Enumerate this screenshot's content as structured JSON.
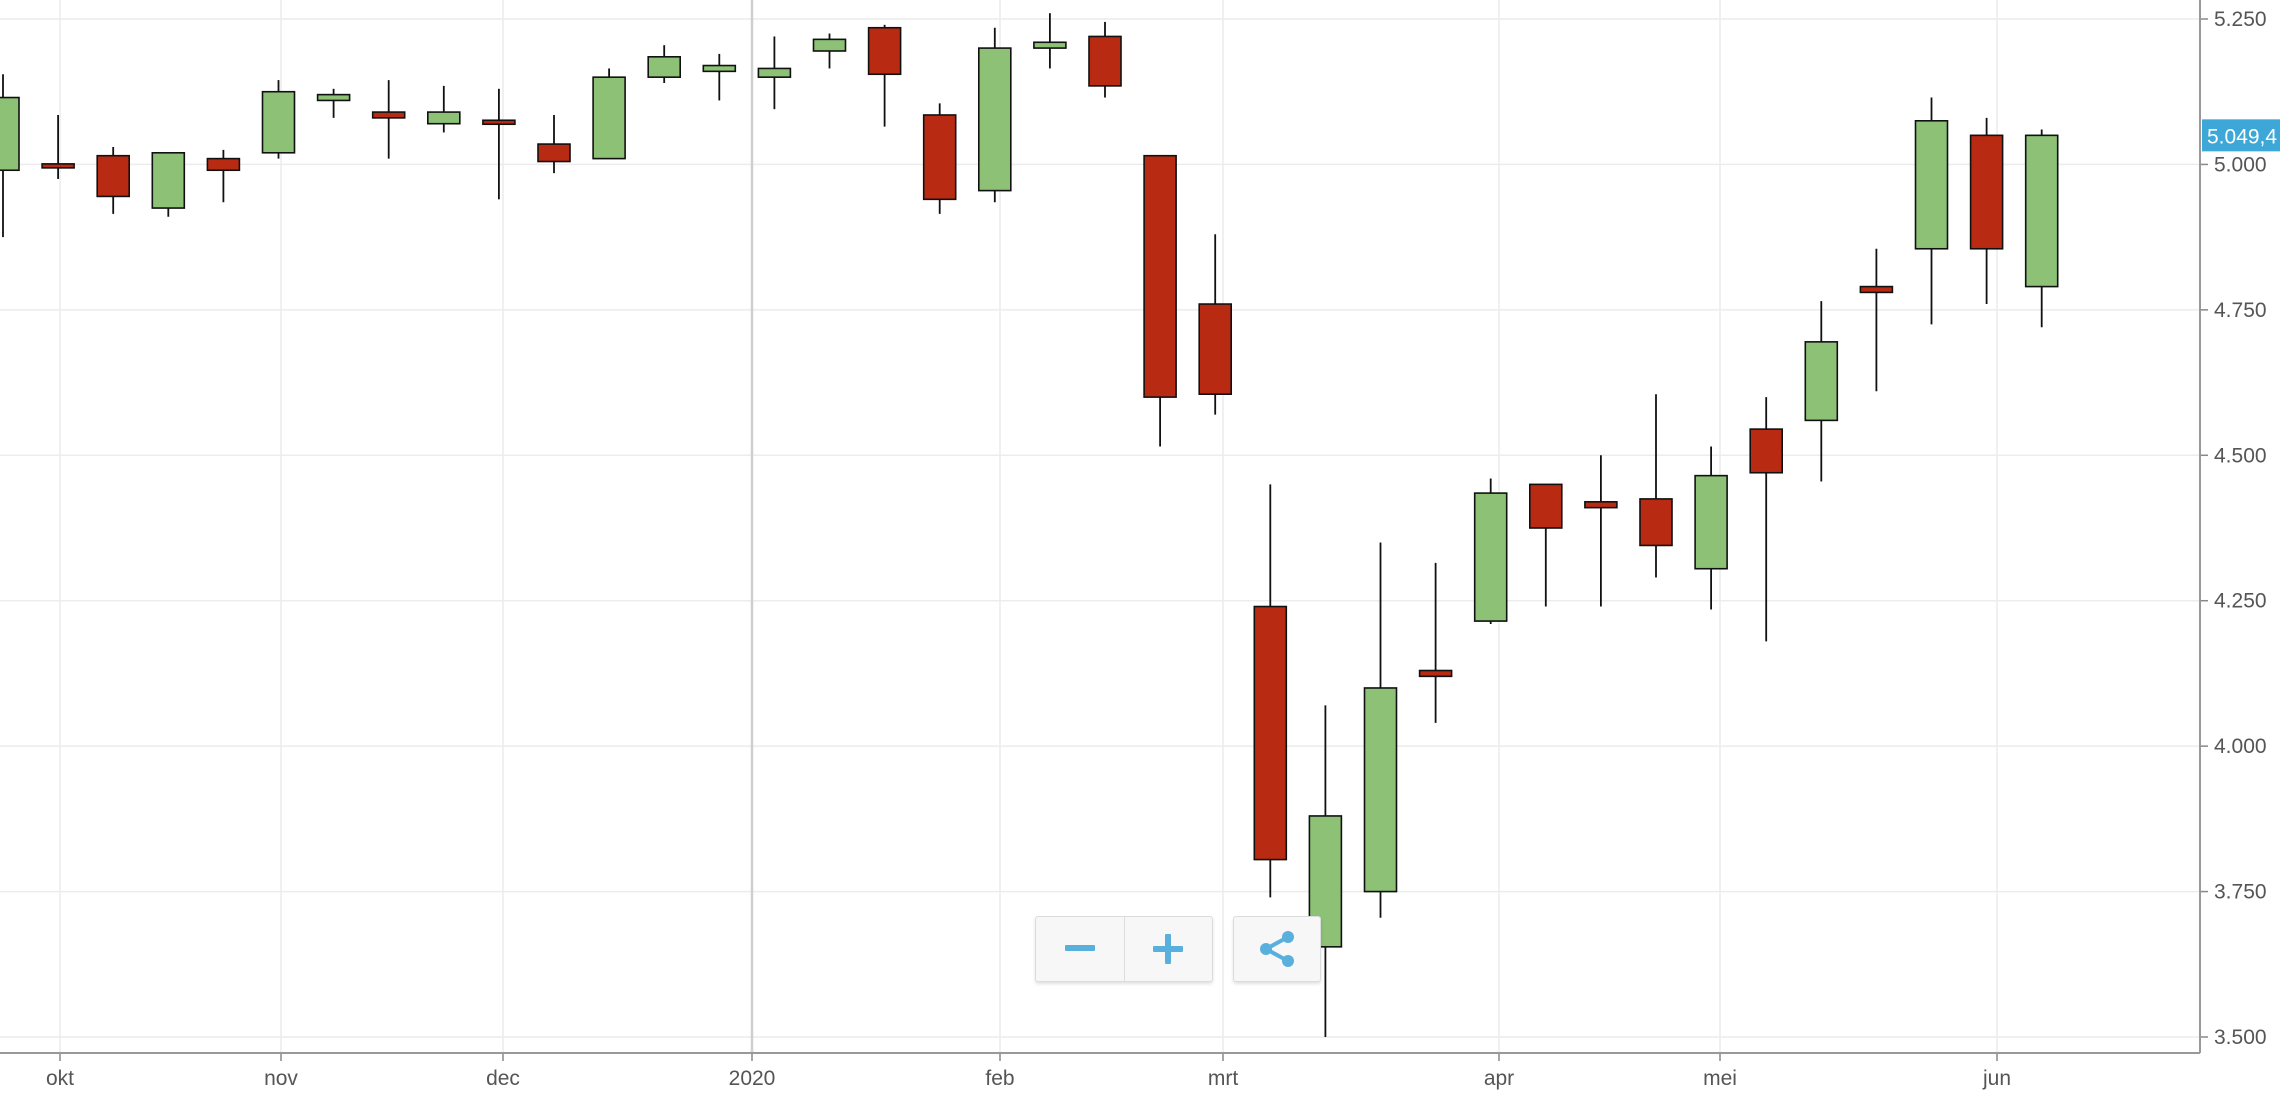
{
  "chart_data": {
    "type": "candlestick",
    "period": "weekly",
    "y_axis": {
      "position": "right",
      "ylim": [
        3500,
        5250
      ],
      "ticks": [
        3500,
        3750,
        4000,
        4250,
        4500,
        4750,
        5000,
        5250
      ],
      "tick_labels": [
        "3.500",
        "3.750",
        "4.000",
        "4.250",
        "4.500",
        "4.750",
        "5.000",
        "5.250"
      ]
    },
    "x_axis": {
      "tick_labels": [
        "okt",
        "nov",
        "dec",
        "2020",
        "feb",
        "mrt",
        "apr",
        "mei",
        "jun"
      ]
    },
    "last_price_label": "5.049,4",
    "grid": true,
    "colors": {
      "up": "#8cc176",
      "down": "#b92a12",
      "wick": "#111111",
      "grid": "#ececec",
      "badge": "#3da7d8",
      "control_icon": "#5ab0dd"
    },
    "candles": [
      {
        "open": 4990,
        "high": 5155,
        "low": 4875,
        "close": 5115
      },
      {
        "open": 5000,
        "high": 5085,
        "low": 4975,
        "close": 4995
      },
      {
        "open": 5015,
        "high": 5030,
        "low": 4915,
        "close": 4945
      },
      {
        "open": 4925,
        "high": 5020,
        "low": 4910,
        "close": 5020
      },
      {
        "open": 5010,
        "high": 5025,
        "low": 4935,
        "close": 4990
      },
      {
        "open": 5020,
        "high": 5145,
        "low": 5010,
        "close": 5125
      },
      {
        "open": 5110,
        "high": 5130,
        "low": 5080,
        "close": 5120
      },
      {
        "open": 5090,
        "high": 5145,
        "low": 5010,
        "close": 5080
      },
      {
        "open": 5070,
        "high": 5135,
        "low": 5055,
        "close": 5090
      },
      {
        "open": 5075,
        "high": 5130,
        "low": 4940,
        "close": 5070
      },
      {
        "open": 5035,
        "high": 5085,
        "low": 4985,
        "close": 5005
      },
      {
        "open": 5010,
        "high": 5165,
        "low": 5010,
        "close": 5150
      },
      {
        "open": 5150,
        "high": 5205,
        "low": 5140,
        "close": 5185
      },
      {
        "open": 5160,
        "high": 5190,
        "low": 5110,
        "close": 5170
      },
      {
        "open": 5150,
        "high": 5220,
        "low": 5095,
        "close": 5165
      },
      {
        "open": 5195,
        "high": 5225,
        "low": 5165,
        "close": 5215
      },
      {
        "open": 5235,
        "high": 5240,
        "low": 5065,
        "close": 5155
      },
      {
        "open": 5085,
        "high": 5105,
        "low": 4915,
        "close": 4940
      },
      {
        "open": 4955,
        "high": 5235,
        "low": 4935,
        "close": 5200
      },
      {
        "open": 5200,
        "high": 5260,
        "low": 5165,
        "close": 5210
      },
      {
        "open": 5220,
        "high": 5245,
        "low": 5115,
        "close": 5135
      },
      {
        "open": 5015,
        "high": 5015,
        "low": 4515,
        "close": 4600
      },
      {
        "open": 4760,
        "high": 4880,
        "low": 4570,
        "close": 4605
      },
      {
        "open": 4240,
        "high": 4450,
        "low": 3740,
        "close": 3805
      },
      {
        "open": 3655,
        "high": 4070,
        "low": 3500,
        "close": 3880
      },
      {
        "open": 3750,
        "high": 4350,
        "low": 3705,
        "close": 4100
      },
      {
        "open": 4130,
        "high": 4315,
        "low": 4040,
        "close": 4120
      },
      {
        "open": 4215,
        "high": 4460,
        "low": 4210,
        "close": 4435
      },
      {
        "open": 4450,
        "high": 4450,
        "low": 4240,
        "close": 4375
      },
      {
        "open": 4420,
        "high": 4500,
        "low": 4240,
        "close": 4410
      },
      {
        "open": 4425,
        "high": 4605,
        "low": 4290,
        "close": 4345
      },
      {
        "open": 4305,
        "high": 4515,
        "low": 4235,
        "close": 4465
      },
      {
        "open": 4545,
        "high": 4600,
        "low": 4180,
        "close": 4470
      },
      {
        "open": 4560,
        "high": 4765,
        "low": 4455,
        "close": 4695
      },
      {
        "open": 4790,
        "high": 4855,
        "low": 4610,
        "close": 4780
      },
      {
        "open": 4855,
        "high": 5115,
        "low": 4725,
        "close": 5075
      },
      {
        "open": 5050,
        "high": 5080,
        "low": 4760,
        "close": 4855
      },
      {
        "open": 4790,
        "high": 5060,
        "low": 4720,
        "close": 5050
      }
    ]
  },
  "controls": {
    "zoom_out_icon": "minus-icon",
    "zoom_in_icon": "plus-icon",
    "share_icon": "share-icon"
  }
}
